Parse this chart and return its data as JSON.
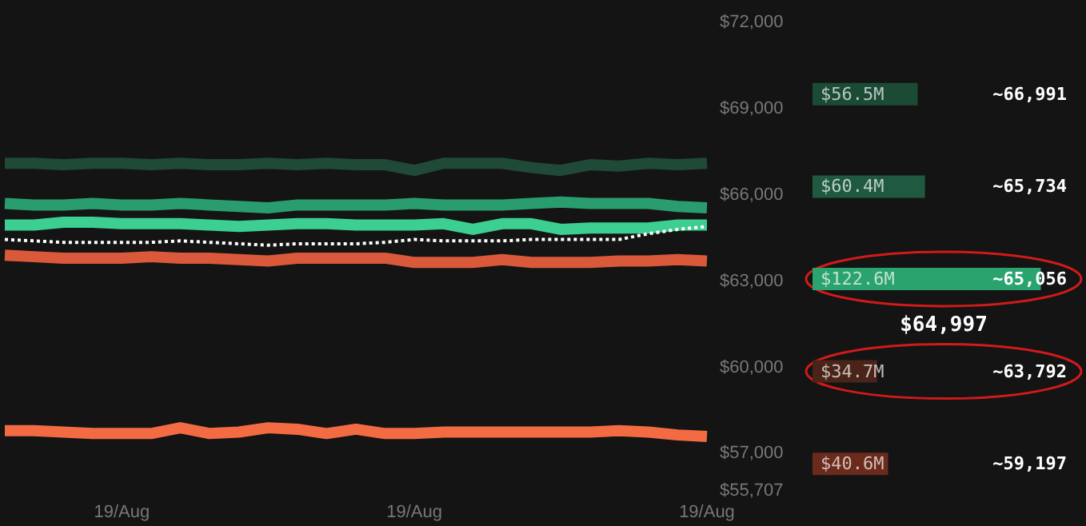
{
  "chart_data": [
    {
      "type": "line",
      "categories": [
        null,
        null,
        null,
        null,
        "19/Aug",
        null,
        null,
        null,
        null,
        null,
        null,
        null,
        null,
        null,
        "19/Aug",
        null,
        null,
        null,
        null,
        null,
        null,
        null,
        null,
        null,
        "19/Aug"
      ],
      "ylim": [
        55707,
        72000
      ],
      "yticks": [
        {
          "value": 72000,
          "label": "$72,000"
        },
        {
          "value": 69000,
          "label": "$69,000"
        },
        {
          "value": 66000,
          "label": "$66,000"
        },
        {
          "value": 63000,
          "label": "$63,000"
        },
        {
          "value": 60000,
          "label": "$60,000"
        },
        {
          "value": 57000,
          "label": "$57,000"
        },
        {
          "value": 55707,
          "label": "$55,707"
        }
      ],
      "series": [
        {
          "color": "#1f4a37",
          "line_style": "solid",
          "values": [
            67100,
            67100,
            67050,
            67100,
            67100,
            67050,
            67100,
            67050,
            67050,
            67100,
            67050,
            67100,
            67050,
            67050,
            66850,
            67100,
            67100,
            67100,
            66950,
            66850,
            67050,
            67000,
            67100,
            67050,
            67100
          ]
        },
        {
          "color": "#2a9d6f",
          "line_style": "solid",
          "values": [
            65700,
            65650,
            65650,
            65700,
            65650,
            65650,
            65700,
            65650,
            65600,
            65550,
            65650,
            65650,
            65650,
            65650,
            65700,
            65650,
            65650,
            65650,
            65700,
            65750,
            65700,
            65700,
            65700,
            65600,
            65550
          ]
        },
        {
          "color": "#3ccf91",
          "line_style": "solid",
          "values": [
            64950,
            64950,
            65050,
            65050,
            65000,
            65000,
            65000,
            64950,
            64900,
            64950,
            65000,
            65000,
            64950,
            64950,
            64950,
            65000,
            64800,
            65000,
            65000,
            64800,
            64850,
            64850,
            64850,
            64950,
            64950
          ]
        },
        {
          "color": "#ffffff",
          "line_style": "dotted",
          "values": [
            64450,
            64400,
            64350,
            64350,
            64350,
            64350,
            64400,
            64350,
            64300,
            64250,
            64300,
            64300,
            64300,
            64350,
            64450,
            64400,
            64400,
            64400,
            64450,
            64450,
            64450,
            64450,
            64650,
            64800,
            64900
          ]
        },
        {
          "color": "#d9593a",
          "line_style": "solid",
          "values": [
            63900,
            63850,
            63800,
            63800,
            63800,
            63850,
            63800,
            63800,
            63750,
            63700,
            63800,
            63800,
            63800,
            63800,
            63650,
            63650,
            63650,
            63750,
            63650,
            63650,
            63650,
            63700,
            63700,
            63750,
            63700
          ]
        },
        {
          "color": "#f26b43",
          "line_style": "solid",
          "values": [
            57800,
            57800,
            57750,
            57700,
            57700,
            57700,
            57900,
            57700,
            57750,
            57900,
            57850,
            57700,
            57850,
            57700,
            57700,
            57750,
            57750,
            57750,
            57750,
            57750,
            57750,
            57800,
            57750,
            57650,
            57600
          ]
        }
      ]
    },
    {
      "type": "bar",
      "orientation": "horizontal",
      "categories": [
        "~66,991",
        "~65,734",
        "~65,056",
        "~63,792",
        "~59,197"
      ],
      "values": [
        56.5,
        60.4,
        122.6,
        34.7,
        40.6
      ],
      "value_labels": [
        "$56.5M",
        "$60.4M",
        "$122.6M",
        "$34.7M",
        "$40.6M"
      ],
      "colors": [
        "#1b4a35",
        "#1f5a40",
        "#2aa36f",
        "#4a2418",
        "#6a2a1c"
      ],
      "annotations": [
        "$64,997"
      ]
    }
  ]
}
